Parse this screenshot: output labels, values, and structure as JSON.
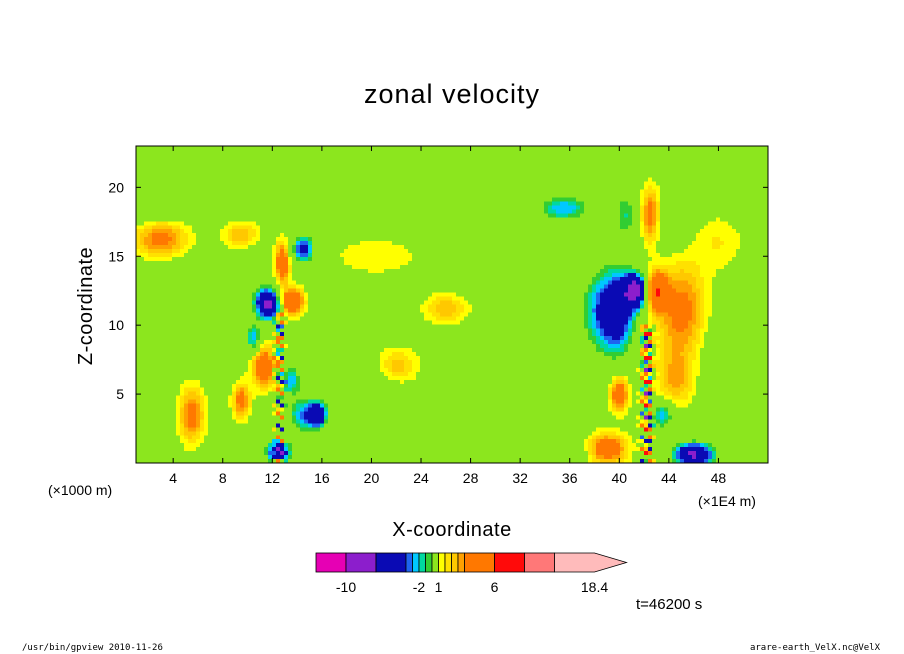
{
  "chart_data": {
    "type": "heatmap",
    "title": "zonal velocity",
    "xlabel": "X-coordinate",
    "ylabel": "Z-coordinate",
    "x_unit": "(×1E4 m)",
    "y_unit": "(×1000 m)",
    "xlim": [
      1,
      52
    ],
    "ylim": [
      0,
      23
    ],
    "x_ticks": [
      4,
      8,
      12,
      16,
      20,
      24,
      28,
      32,
      36,
      40,
      44,
      48
    ],
    "y_ticks": [
      5,
      10,
      15,
      20
    ],
    "features": [
      {
        "x": 11.7,
        "z": 11.5,
        "value": -7,
        "sx": 0.9,
        "sz": 1.0
      },
      {
        "x": 13.6,
        "z": 11.7,
        "value": 5,
        "sx": 0.9,
        "sz": 0.9
      },
      {
        "x": 12.8,
        "z": 14.5,
        "value": 4,
        "sx": 0.6,
        "sz": 1.5
      },
      {
        "x": 14.5,
        "z": 15.5,
        "value": -4,
        "sx": 0.9,
        "sz": 1.0
      },
      {
        "x": 10.5,
        "z": 9.0,
        "value": -3,
        "sx": 0.6,
        "sz": 1.0
      },
      {
        "x": 11.3,
        "z": 7.0,
        "value": 4,
        "sx": 0.9,
        "sz": 1.5
      },
      {
        "x": 9.5,
        "z": 4.5,
        "value": 3,
        "sx": 0.7,
        "sz": 1.3
      },
      {
        "x": 13.5,
        "z": 6.0,
        "value": -3,
        "sx": 0.8,
        "sz": 1.0
      },
      {
        "x": 15.7,
        "z": 3.5,
        "value": -5,
        "sx": 0.7,
        "sz": 0.9
      },
      {
        "x": 14.5,
        "z": 3.5,
        "value": -3,
        "sx": 1.2,
        "sz": 1.3
      },
      {
        "x": 12.5,
        "z": 0.8,
        "value": -5,
        "sx": 1.0,
        "sz": 0.8
      },
      {
        "x": 5.5,
        "z": 3.5,
        "value": 3,
        "sx": 1.0,
        "sz": 2.0
      },
      {
        "x": 3.0,
        "z": 16.2,
        "value": 3,
        "sx": 2.2,
        "sz": 1.4
      },
      {
        "x": 9.5,
        "z": 16.5,
        "value": 2,
        "sx": 1.5,
        "sz": 1.0
      },
      {
        "x": 20.5,
        "z": 15.0,
        "value": 1,
        "sx": 3.5,
        "sz": 1.3
      },
      {
        "x": 26.0,
        "z": 11.2,
        "value": 2,
        "sx": 1.7,
        "sz": 1.0
      },
      {
        "x": 22.0,
        "z": 7.0,
        "value": 2,
        "sx": 1.7,
        "sz": 1.3
      },
      {
        "x": 4.0,
        "z": 12.0,
        "value": -1,
        "sx": 3.5,
        "sz": 3.0
      },
      {
        "x": 2.0,
        "z": 18.5,
        "value": -1,
        "sx": 3.0,
        "sz": 1.2
      },
      {
        "x": 20.0,
        "z": 5.5,
        "value": -1,
        "sx": 2.5,
        "sz": 2.0
      },
      {
        "x": 28.0,
        "z": 2.5,
        "value": -1,
        "sx": 5.0,
        "sz": 1.6
      },
      {
        "x": 30.0,
        "z": 15.5,
        "value": -1,
        "sx": 4.0,
        "sz": 1.8
      },
      {
        "x": 30.0,
        "z": 7.0,
        "value": -1,
        "sx": 3.0,
        "sz": 1.5
      },
      {
        "x": 10.5,
        "z": 13.0,
        "value": -1,
        "sx": 1.5,
        "sz": 2.5
      },
      {
        "x": 41.3,
        "z": 12.5,
        "value": -7,
        "sx": 0.9,
        "sz": 1.2
      },
      {
        "x": 43.0,
        "z": 12.5,
        "value": 5,
        "sx": 0.8,
        "sz": 1.3
      },
      {
        "x": 40.0,
        "z": 11.0,
        "value": -4,
        "sx": 1.3,
        "sz": 3.0
      },
      {
        "x": 38.5,
        "z": 11.0,
        "value": -3,
        "sx": 1.6,
        "sz": 3.0
      },
      {
        "x": 45.0,
        "z": 11.0,
        "value": 3,
        "sx": 2.0,
        "sz": 3.5
      },
      {
        "x": 44.5,
        "z": 6.0,
        "value": 2,
        "sx": 1.5,
        "sz": 2.0
      },
      {
        "x": 40.0,
        "z": 5.0,
        "value": 4,
        "sx": 0.7,
        "sz": 1.2
      },
      {
        "x": 39.0,
        "z": 1.0,
        "value": 4,
        "sx": 1.6,
        "sz": 1.1
      },
      {
        "x": 46.0,
        "z": 0.6,
        "value": -7,
        "sx": 1.5,
        "sz": 0.8
      },
      {
        "x": 43.5,
        "z": 3.5,
        "value": -3,
        "sx": 0.9,
        "sz": 1.0
      },
      {
        "x": 42.5,
        "z": 18.0,
        "value": 3,
        "sx": 0.7,
        "sz": 2.0
      },
      {
        "x": 40.5,
        "z": 18.0,
        "value": -2,
        "sx": 0.8,
        "sz": 2.0
      },
      {
        "x": 44.5,
        "z": 17.0,
        "value": -1,
        "sx": 1.3,
        "sz": 1.5
      },
      {
        "x": 35.5,
        "z": 18.5,
        "value": -3,
        "sx": 2.0,
        "sz": 0.9
      },
      {
        "x": 48.0,
        "z": 16.0,
        "value": 1,
        "sx": 2.0,
        "sz": 2.0
      },
      {
        "x": 33.0,
        "z": 4.5,
        "value": -1,
        "sx": 2.5,
        "sz": 2.5
      },
      {
        "x": 36.0,
        "z": 0.8,
        "value": -1,
        "sx": 3.0,
        "sz": 1.0
      },
      {
        "x": 49.0,
        "z": 8.0,
        "value": -1,
        "sx": 2.5,
        "sz": 3.0
      },
      {
        "x": 50.0,
        "z": 22.0,
        "value": -0.8,
        "sx": 3.0,
        "sz": 1.0
      },
      {
        "x": 20.0,
        "z": 22.0,
        "value": -0.8,
        "sx": 3.0,
        "sz": 0.8
      }
    ],
    "turbulent_columns": [
      {
        "x": 12.6,
        "z0": 0,
        "z1": 11,
        "amp": 8,
        "dx": 0.35
      },
      {
        "x": 42.2,
        "z0": 0,
        "z1": 10,
        "amp": 9,
        "dx": 0.45
      }
    ],
    "background_value": 0.5,
    "colorbar": {
      "levels": [
        -14,
        -10,
        -6,
        -3,
        -2.5,
        -2,
        -1.5,
        -1,
        1,
        1.5,
        2,
        2.5,
        3,
        6,
        10,
        14,
        18.4
      ],
      "colors": [
        "#e600b4",
        "#8c1ecc",
        "#0a0ab4",
        "#1e64f0",
        "#00c8ff",
        "#00d8a0",
        "#32cd32",
        "#8ce61e",
        "#ffff00",
        "#ffe100",
        "#ffc800",
        "#ffa000",
        "#ff7800",
        "#ff0a0a",
        "#ff7878",
        "#ffbbbb"
      ],
      "labels": [
        {
          "value": -10,
          "text": "-10"
        },
        {
          "value": -2,
          "text": "-2"
        },
        {
          "value": 1,
          "text": "1"
        },
        {
          "value": 6,
          "text": "6"
        },
        {
          "value": 18.4,
          "text": "18.4"
        }
      ]
    }
  },
  "time_label": "t=46200 s",
  "footer_left": "/usr/bin/gpview   2010-11-26",
  "footer_right": "arare-earth_VelX.nc@VelX"
}
